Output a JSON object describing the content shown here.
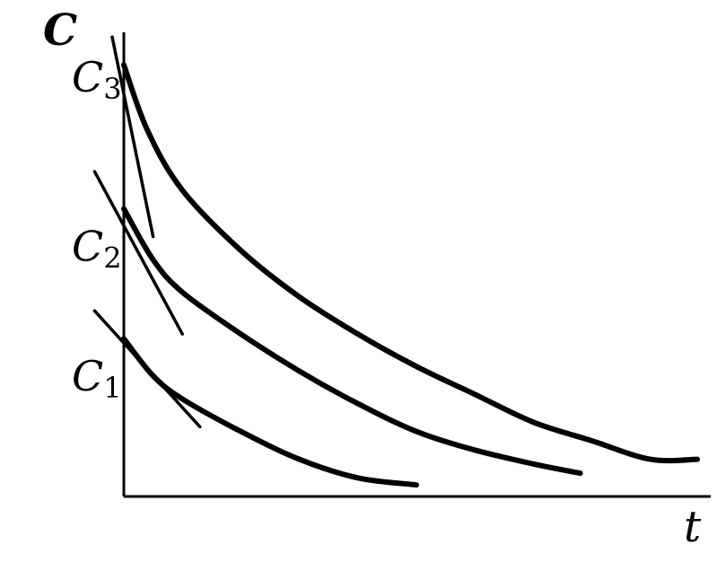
{
  "chart_data": {
    "type": "line",
    "title": "",
    "ylabel": "C",
    "xlabel": "t",
    "xlim": [
      0,
      100
    ],
    "ylim": [
      0,
      100
    ],
    "grid": false,
    "legend": "none",
    "series": [
      {
        "label_main": "C",
        "label_sub": "3",
        "y0": 93,
        "points": [
          [
            0,
            93
          ],
          [
            4,
            79
          ],
          [
            10,
            66
          ],
          [
            20,
            53
          ],
          [
            30,
            43
          ],
          [
            40,
            35
          ],
          [
            50,
            28
          ],
          [
            60,
            22
          ],
          [
            70,
            16
          ],
          [
            80,
            12
          ],
          [
            90,
            8
          ],
          [
            98,
            8
          ]
        ]
      },
      {
        "label_main": "C",
        "label_sub": "2",
        "y0": 62,
        "points": [
          [
            0,
            62
          ],
          [
            5,
            51
          ],
          [
            10,
            44
          ],
          [
            20,
            35
          ],
          [
            30,
            27
          ],
          [
            40,
            20
          ],
          [
            50,
            14
          ],
          [
            60,
            10
          ],
          [
            70,
            7
          ],
          [
            78,
            5
          ]
        ]
      },
      {
        "label_main": "C",
        "label_sub": "1",
        "y0": 34,
        "points": [
          [
            0,
            34
          ],
          [
            5,
            26
          ],
          [
            10,
            21
          ],
          [
            20,
            14
          ],
          [
            30,
            8
          ],
          [
            40,
            4
          ],
          [
            50,
            2.5
          ]
        ]
      }
    ],
    "tangents": [
      {
        "series": "C3",
        "x1": -2,
        "y1": 99,
        "x2": 5,
        "y2": 56
      },
      {
        "series": "C2",
        "x1": -5,
        "y1": 70,
        "x2": 10,
        "y2": 35
      },
      {
        "series": "C1",
        "x1": -5,
        "y1": 40,
        "x2": 13,
        "y2": 15
      }
    ]
  }
}
